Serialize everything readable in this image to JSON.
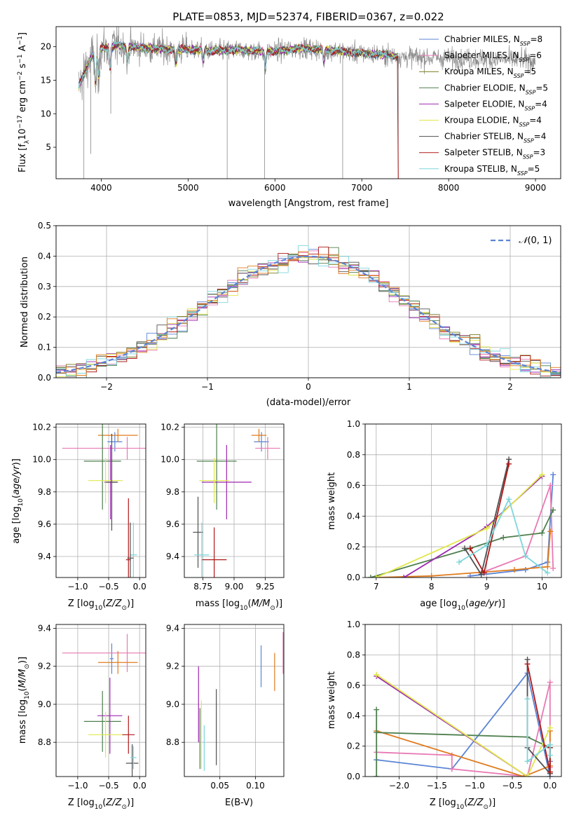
{
  "page": {
    "title": "PLATE=0853, MJD=52374, FIBERID=0367, z=0.022"
  },
  "colors": {
    "Chabrier MILES": "#5b84d6",
    "Salpeter MILES": "#e879b4",
    "Kroupa MILES": "#7a7a1a",
    "Chabrier ELODIE": "#4e7f4e",
    "Salpeter ELODIE": "#9c27b0",
    "Kroupa ELODIE": "#e0e84a",
    "Chabrier STELIB": "#505050",
    "Salpeter STELIB": "#b01818",
    "Kroupa STELIB": "#7ed6dc",
    "orange": "#e07b1e",
    "data": "#8a8a8a",
    "grid": "#b0b0b0"
  },
  "chart_data": [
    {
      "id": "spectrum",
      "type": "line",
      "xlabel": "wavelength [Angstrom, rest frame]",
      "ylabel": "Flux [f_λ 10^-17 erg cm^-2 s^-1 A^-1]",
      "xlim": [
        3480,
        9290
      ],
      "ylim": [
        0.3,
        23
      ],
      "xticks": [
        "4000",
        "5000",
        "6000",
        "7000",
        "8000",
        "9000"
      ],
      "yticks": [
        "5",
        "10",
        "15",
        "20"
      ],
      "legend_position": "top-right",
      "legend": [
        {
          "label": "Chabrier MILES, N_SSP=8",
          "key": "Chabrier MILES"
        },
        {
          "label": "Salpeter MILES, N_SSP=6",
          "key": "Salpeter MILES"
        },
        {
          "label": "Kroupa MILES, N_SSP=5",
          "key": "Kroupa MILES"
        },
        {
          "label": "Chabrier ELODIE, N_SSP=5",
          "key": "Chabrier ELODIE"
        },
        {
          "label": "Salpeter ELODIE, N_SSP=4",
          "key": "Salpeter ELODIE"
        },
        {
          "label": "Kroupa ELODIE, N_SSP=4",
          "key": "Kroupa ELODIE"
        },
        {
          "label": "Chabrier STELIB, N_SSP=4",
          "key": "Chabrier STELIB"
        },
        {
          "label": "Salpeter STELIB, N_SSP=3",
          "key": "Salpeter STELIB"
        },
        {
          "label": "Kroupa STELIB, N_SSP=5",
          "key": "Kroupa STELIB"
        }
      ],
      "continuum_shape": [
        [
          3740,
          14
        ],
        [
          3800,
          16
        ],
        [
          3900,
          18.8
        ],
        [
          4000,
          19.8
        ],
        [
          4200,
          20.2
        ],
        [
          4500,
          19.8
        ],
        [
          4800,
          19.6
        ],
        [
          5000,
          19.6
        ],
        [
          5300,
          19.4
        ],
        [
          5600,
          19.5
        ],
        [
          6000,
          19.3
        ],
        [
          6300,
          19.8
        ],
        [
          6600,
          19.5
        ],
        [
          7000,
          19.0
        ],
        [
          7300,
          18.8
        ],
        [
          7420,
          18.5
        ]
      ],
      "model_wavelength_range": [
        3740,
        7420
      ],
      "data_wavelength_range": [
        3740,
        9000
      ]
    },
    {
      "id": "residual_hist",
      "type": "bar",
      "xlabel": "(data-model)/error",
      "ylabel": "Normed distribution",
      "xlim": [
        -2.5,
        2.5
      ],
      "ylim": [
        0,
        0.5
      ],
      "xticks": [
        "−2",
        "−1",
        "0",
        "1",
        "2"
      ],
      "yticks": [
        "0.0",
        "0.1",
        "0.2",
        "0.3",
        "0.4",
        "0.5"
      ],
      "legend": [
        {
          "label": "𝒩(0, 1)"
        }
      ],
      "legend_position": "top-right",
      "bin_width": 0.1
    },
    {
      "id": "age_vs_Z",
      "type": "scatter",
      "xlabel": "Z [log10(Z/Z⊙)]",
      "ylabel": "age  [log10(age/yr)]",
      "xlim": [
        -1.35,
        0.1
      ],
      "ylim": [
        9.27,
        10.22
      ],
      "xticks": [
        "−1.0",
        "−0.5",
        "0.0"
      ],
      "yticks": [
        "9.4",
        "9.6",
        "9.8",
        "10.0",
        "10.2"
      ],
      "points": [
        {
          "model": "Chabrier MILES",
          "x": -0.4,
          "xerr": 0.12,
          "y": 10.11,
          "yerr": 0.06
        },
        {
          "model": "Salpeter MILES",
          "x": -0.2,
          "xerr": 1.05,
          "y": 10.07,
          "yerr": 0.07
        },
        {
          "model": "orange",
          "x": -0.35,
          "xerr": 0.32,
          "y": 10.15,
          "yerr": 0.04
        },
        {
          "model": "Chabrier ELODIE",
          "x": -0.6,
          "xerr": 0.3,
          "y": 9.99,
          "yerr": 0.3
        },
        {
          "model": "Salpeter ELODIE",
          "x": -0.47,
          "xerr": 0.1,
          "y": 9.86,
          "yerr": 0.23
        },
        {
          "model": "Kroupa ELODIE",
          "x": -0.55,
          "xerr": 0.28,
          "y": 9.87,
          "yerr": 0.14
        },
        {
          "model": "Chabrier STELIB",
          "x": -0.45,
          "xerr": 0.1,
          "y": 9.86,
          "yerr": 0.3
        },
        {
          "model": "Salpeter STELIB",
          "x": -0.18,
          "xerr": 0.04,
          "y": 9.38,
          "yerr": 0.38
        },
        {
          "model": "Kroupa STELIB",
          "x": -0.1,
          "xerr": 0.06,
          "y": 9.41,
          "yerr": 0.2
        },
        {
          "model": "Chabrier STELIB",
          "x": -0.15,
          "xerr": 0.05,
          "y": 9.39,
          "yerr": 0.22
        }
      ]
    },
    {
      "id": "age_vs_mass",
      "type": "scatter",
      "xlabel": "mass [log10(M/M⊙)]",
      "ylabel": "",
      "xlim": [
        8.6,
        9.4
      ],
      "ylim": [
        9.27,
        10.22
      ],
      "xticks": [
        "8.75",
        "9.00",
        "9.25"
      ],
      "yticks": [
        "9.4",
        "9.6",
        "9.8",
        "10.0",
        "10.2"
      ],
      "points": [
        {
          "model": "Chabrier MILES",
          "x": 9.22,
          "xerr": 0.06,
          "y": 10.11,
          "yerr": 0.06
        },
        {
          "model": "Salpeter MILES",
          "x": 9.27,
          "xerr": 0.1,
          "y": 10.07,
          "yerr": 0.07
        },
        {
          "model": "orange",
          "x": 9.2,
          "xerr": 0.06,
          "y": 10.15,
          "yerr": 0.04
        },
        {
          "model": "Chabrier ELODIE",
          "x": 8.86,
          "xerr": 0.16,
          "y": 9.99,
          "yerr": 0.3
        },
        {
          "model": "Salpeter ELODIE",
          "x": 8.94,
          "xerr": 0.2,
          "y": 9.86,
          "yerr": 0.23
        },
        {
          "model": "Kroupa ELODIE",
          "x": 8.84,
          "xerr": 0.12,
          "y": 9.87,
          "yerr": 0.14
        },
        {
          "model": "Chabrier STELIB",
          "x": 8.71,
          "xerr": 0.04,
          "y": 9.55,
          "yerr": 0.22
        },
        {
          "model": "Salpeter STELIB",
          "x": 8.84,
          "xerr": 0.1,
          "y": 9.38,
          "yerr": 0.2
        },
        {
          "model": "Kroupa STELIB",
          "x": 8.74,
          "xerr": 0.06,
          "y": 9.41,
          "yerr": 0.2
        }
      ]
    },
    {
      "id": "weight_vs_age",
      "type": "line",
      "xlabel": "age  [log10(age/yr)]",
      "ylabel": "mass weight",
      "xlim": [
        6.8,
        10.35
      ],
      "ylim": [
        0,
        1
      ],
      "xticks": [
        "7",
        "8",
        "9",
        "10"
      ],
      "yticks": [
        "0.0",
        "0.2",
        "0.4",
        "0.6",
        "0.8",
        "1.0"
      ],
      "series": [
        {
          "model": "Chabrier MILES",
          "x": [
            8.7,
            9.7,
            10.1,
            10.2
          ],
          "y": [
            0.01,
            0.05,
            0.1,
            0.67
          ]
        },
        {
          "model": "Salpeter MILES",
          "x": [
            8.9,
            9.7,
            10.15,
            10.2
          ],
          "y": [
            0.03,
            0.14,
            0.6,
            0.06
          ]
        },
        {
          "model": "orange",
          "x": [
            7.0,
            8.0,
            9.5,
            10.1,
            10.15
          ],
          "y": [
            0.0,
            0.01,
            0.05,
            0.07,
            0.3
          ]
        },
        {
          "model": "Chabrier ELODIE",
          "x": [
            6.9,
            8.7,
            9.3,
            10.0,
            10.2
          ],
          "y": [
            0.0,
            0.19,
            0.26,
            0.29,
            0.44
          ]
        },
        {
          "model": "Salpeter ELODIE",
          "x": [
            7.5,
            9.0,
            10.0
          ],
          "y": [
            0.0,
            0.33,
            0.66
          ]
        },
        {
          "model": "Kroupa ELODIE",
          "x": [
            7.0,
            9.0,
            10.0
          ],
          "y": [
            0.0,
            0.32,
            0.67
          ]
        },
        {
          "model": "Chabrier STELIB",
          "x": [
            8.6,
            8.9,
            9.4
          ],
          "y": [
            0.19,
            0.02,
            0.77
          ]
        },
        {
          "model": "Salpeter STELIB",
          "x": [
            8.7,
            8.95,
            9.4
          ],
          "y": [
            0.19,
            0.03,
            0.74
          ]
        },
        {
          "model": "Kroupa STELIB",
          "x": [
            8.5,
            9.0,
            9.4,
            9.7,
            10.1
          ],
          "y": [
            0.1,
            0.21,
            0.51,
            0.14,
            0.03
          ]
        }
      ]
    },
    {
      "id": "mass_vs_Z",
      "type": "scatter",
      "xlabel": "Z [log10(Z/Z⊙)]",
      "ylabel": "mass [log10(M/M⊙)]",
      "xlim": [
        -1.35,
        0.1
      ],
      "ylim": [
        8.62,
        9.42
      ],
      "xticks": [
        "−1.0",
        "−0.5",
        "0.0"
      ],
      "yticks": [
        "8.8",
        "9.0",
        "9.2",
        "9.4"
      ],
      "points": [
        {
          "model": "Chabrier MILES",
          "x": -0.45,
          "xerr": 0.03,
          "y": 9.24,
          "yerr": 0.08
        },
        {
          "model": "Salpeter MILES",
          "x": -0.2,
          "xerr": 1.05,
          "y": 9.27,
          "yerr": 0.1
        },
        {
          "model": "orange",
          "x": -0.35,
          "xerr": 0.32,
          "y": 9.22,
          "yerr": 0.06
        },
        {
          "model": "Chabrier ELODIE",
          "x": -0.6,
          "xerr": 0.3,
          "y": 8.91,
          "yerr": 0.16
        },
        {
          "model": "Salpeter ELODIE",
          "x": -0.48,
          "xerr": 0.2,
          "y": 8.94,
          "yerr": 0.2
        },
        {
          "model": "Kroupa ELODIE",
          "x": -0.55,
          "xerr": 0.28,
          "y": 8.84,
          "yerr": 0.12
        },
        {
          "model": "Chabrier STELIB",
          "x": -0.12,
          "xerr": 0.1,
          "y": 8.69,
          "yerr": 0.1
        },
        {
          "model": "Salpeter STELIB",
          "x": -0.18,
          "xerr": 0.1,
          "y": 8.84,
          "yerr": 0.1
        },
        {
          "model": "Kroupa STELIB",
          "x": -0.1,
          "xerr": 0.05,
          "y": 8.72,
          "yerr": 0.06
        }
      ]
    },
    {
      "id": "mass_vs_ebv",
      "type": "scatter",
      "xlabel": "E(B-V)",
      "ylabel": "",
      "xlim": [
        0.0,
        0.14
      ],
      "ylim": [
        8.62,
        9.42
      ],
      "xticks": [
        "0.05",
        "0.10"
      ],
      "yticks": [
        "8.8",
        "9.0",
        "9.2",
        "9.4"
      ],
      "points": [
        {
          "model": "Chabrier MILES",
          "x": 0.108,
          "y": 9.2,
          "yerr": 0.11
        },
        {
          "model": "orange",
          "x": 0.127,
          "y": 9.17,
          "yerr": 0.1
        },
        {
          "model": "Salpeter MILES",
          "x": 0.139,
          "y": 9.27,
          "yerr": 0.11
        },
        {
          "model": "Salpeter ELODIE",
          "x": 0.02,
          "y": 9.0,
          "yerr": 0.2
        },
        {
          "model": "Chabrier ELODIE",
          "x": 0.022,
          "y": 8.82,
          "yerr": 0.16
        },
        {
          "model": "Kroupa ELODIE",
          "x": 0.024,
          "y": 8.84,
          "yerr": 0.18
        },
        {
          "model": "Kroupa STELIB",
          "x": 0.028,
          "y": 8.77,
          "yerr": 0.12
        },
        {
          "model": "Chabrier STELIB",
          "x": 0.045,
          "y": 8.88,
          "yerr": 0.2
        }
      ]
    },
    {
      "id": "weight_vs_Z",
      "type": "line",
      "xlabel": "Z [log10(Z/Z⊙)]",
      "ylabel": "mass weight",
      "xlim": [
        -2.45,
        0.15
      ],
      "ylim": [
        0,
        1
      ],
      "xticks": [
        "−2.0",
        "−1.5",
        "−1.0",
        "−0.5",
        "0.0"
      ],
      "yticks": [
        "0.0",
        "0.2",
        "0.4",
        "0.6",
        "0.8",
        "1.0"
      ],
      "series": [
        {
          "model": "Chabrier MILES",
          "x": [
            -2.3,
            -1.3,
            -0.3,
            0.0,
            0.0
          ],
          "y": [
            0.11,
            0.05,
            0.68,
            0.0,
            0.1
          ]
        },
        {
          "model": "Salpeter MILES",
          "x": [
            -2.3,
            -1.3,
            -1.3,
            -0.3,
            0.0,
            0.0
          ],
          "y": [
            0.16,
            0.14,
            0.05,
            0.0,
            0.62,
            0.06
          ]
        },
        {
          "model": "orange",
          "x": [
            -2.3,
            -0.35,
            0.0,
            0.0
          ],
          "y": [
            0.3,
            0.0,
            0.07,
            0.3
          ]
        },
        {
          "model": "Chabrier ELODIE",
          "x": [
            -2.3,
            -2.3,
            -2.3,
            -0.3,
            0.0,
            0.0
          ],
          "y": [
            0.0,
            0.44,
            0.29,
            0.26,
            0.19,
            0.02
          ]
        },
        {
          "model": "Salpeter ELODIE",
          "x": [
            -2.3,
            -0.3
          ],
          "y": [
            0.66,
            0.0
          ]
        },
        {
          "model": "Kroupa ELODIE",
          "x": [
            -2.3,
            -0.3,
            0.0
          ],
          "y": [
            0.67,
            0.0,
            0.32
          ]
        },
        {
          "model": "Chabrier STELIB",
          "x": [
            -0.3,
            -0.3,
            0.0,
            0.0
          ],
          "y": [
            0.77,
            0.19,
            0.02,
            0.19
          ]
        },
        {
          "model": "Salpeter STELIB",
          "x": [
            -0.3,
            0.0,
            0.0
          ],
          "y": [
            0.74,
            0.03,
            0.19
          ]
        },
        {
          "model": "Kroupa STELIB",
          "x": [
            -0.3,
            -0.3,
            0.0,
            0.0
          ],
          "y": [
            0.51,
            0.1,
            0.21,
            0.14
          ]
        }
      ]
    }
  ]
}
